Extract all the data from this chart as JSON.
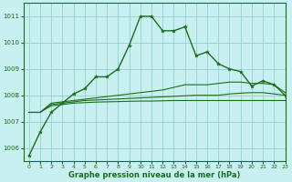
{
  "background_color": "#c8f0f0",
  "grid_color": "#aadddd",
  "line_color": "#1a6e1a",
  "marker": "*",
  "xlabel": "Graphe pression niveau de la mer (hPa)",
  "xlim": [
    -0.5,
    23
  ],
  "ylim": [
    1005.5,
    1011.5
  ],
  "yticks": [
    1006,
    1007,
    1008,
    1009,
    1010,
    1011
  ],
  "xticks": [
    0,
    1,
    2,
    3,
    4,
    5,
    6,
    7,
    8,
    9,
    10,
    11,
    12,
    13,
    14,
    15,
    16,
    17,
    18,
    19,
    20,
    21,
    22,
    23
  ],
  "series": [
    {
      "y": [
        1005.7,
        1006.6,
        1007.35,
        1007.7,
        1008.05,
        1008.25,
        1008.7,
        1008.7,
        1009.0,
        1009.9,
        1011.0,
        1011.0,
        1010.45,
        1010.45,
        1010.6,
        1009.5,
        1009.65,
        1009.2,
        1009.0,
        1008.9,
        1008.35,
        1008.55,
        1008.4,
        1008.0
      ],
      "marker": true,
      "lw": 1.0
    },
    {
      "y": [
        1007.35,
        1007.35,
        1007.7,
        1007.75,
        1007.8,
        1007.85,
        1007.9,
        1007.95,
        1008.0,
        1008.05,
        1008.1,
        1008.15,
        1008.2,
        1008.3,
        1008.4,
        1008.4,
        1008.4,
        1008.45,
        1008.5,
        1008.5,
        1008.45,
        1008.45,
        1008.4,
        1008.1
      ],
      "marker": false,
      "lw": 0.8
    },
    {
      "y": [
        1007.35,
        1007.35,
        1007.65,
        1007.7,
        1007.75,
        1007.8,
        1007.82,
        1007.84,
        1007.86,
        1007.88,
        1007.9,
        1007.92,
        1007.94,
        1007.96,
        1007.98,
        1008.0,
        1008.0,
        1008.0,
        1008.05,
        1008.08,
        1008.1,
        1008.1,
        1008.05,
        1008.0
      ],
      "marker": false,
      "lw": 0.8
    },
    {
      "y": [
        1007.35,
        1007.35,
        1007.6,
        1007.65,
        1007.7,
        1007.72,
        1007.74,
        1007.75,
        1007.76,
        1007.77,
        1007.78,
        1007.78,
        1007.79,
        1007.8,
        1007.8,
        1007.8,
        1007.8,
        1007.8,
        1007.8,
        1007.8,
        1007.8,
        1007.8,
        1007.8,
        1007.8
      ],
      "marker": false,
      "lw": 0.8
    }
  ]
}
